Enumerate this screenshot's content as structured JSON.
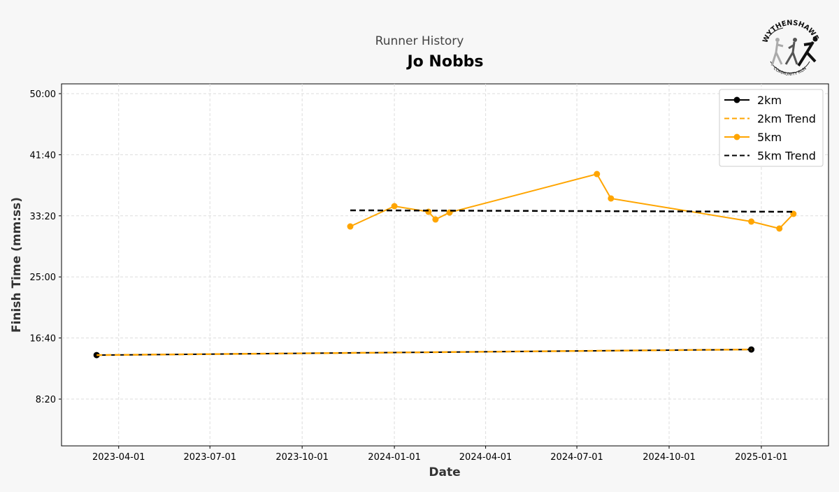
{
  "header": {
    "subtitle": "Runner History",
    "title": "Jo Nobbs"
  },
  "logo": {
    "text_top": "WYTHENSHAWE",
    "text_bottom": "COMMUNITY RUN"
  },
  "chart_data": {
    "type": "line",
    "xlabel": "Date",
    "ylabel": "Finish Time (mm:ss)",
    "xlim": [
      "2023-02-03",
      "2025-03-09"
    ],
    "ylim": [
      "1:57",
      "51:20"
    ],
    "x_ticks": [
      "2023-04-01",
      "2023-07-01",
      "2023-10-01",
      "2024-01-01",
      "2024-04-01",
      "2024-07-01",
      "2024-10-01",
      "2025-01-01"
    ],
    "y_ticks": [
      "8:20",
      "16:40",
      "25:00",
      "33:20",
      "41:40",
      "50:00"
    ],
    "grid": true,
    "legend_position": "top-right",
    "series": [
      {
        "name": "2km",
        "color": "#000000",
        "style": "solid",
        "marker": true,
        "points": [
          [
            "2023-03-10",
            "14:20"
          ],
          [
            "2024-12-22",
            "15:06"
          ]
        ]
      },
      {
        "name": "2km Trend",
        "color": "#ffa500",
        "style": "dashed",
        "marker": false,
        "points": [
          [
            "2023-03-10",
            "14:20"
          ],
          [
            "2024-12-22",
            "15:06"
          ]
        ]
      },
      {
        "name": "5km",
        "color": "#ffa500",
        "style": "solid",
        "marker": true,
        "points": [
          [
            "2023-11-18",
            "31:53"
          ],
          [
            "2024-01-01",
            "34:39"
          ],
          [
            "2024-02-04",
            "33:53"
          ],
          [
            "2024-02-11",
            "32:50"
          ],
          [
            "2024-02-25",
            "33:47"
          ],
          [
            "2024-07-21",
            "39:02"
          ],
          [
            "2024-08-04",
            "35:42"
          ],
          [
            "2024-12-22",
            "32:33"
          ],
          [
            "2025-01-19",
            "31:36"
          ],
          [
            "2025-02-02",
            "33:36"
          ]
        ]
      },
      {
        "name": "5km Trend",
        "color": "#000000",
        "style": "dashed",
        "marker": false,
        "points": [
          [
            "2023-11-18",
            "34:05"
          ],
          [
            "2025-02-02",
            "33:53"
          ]
        ]
      }
    ]
  }
}
